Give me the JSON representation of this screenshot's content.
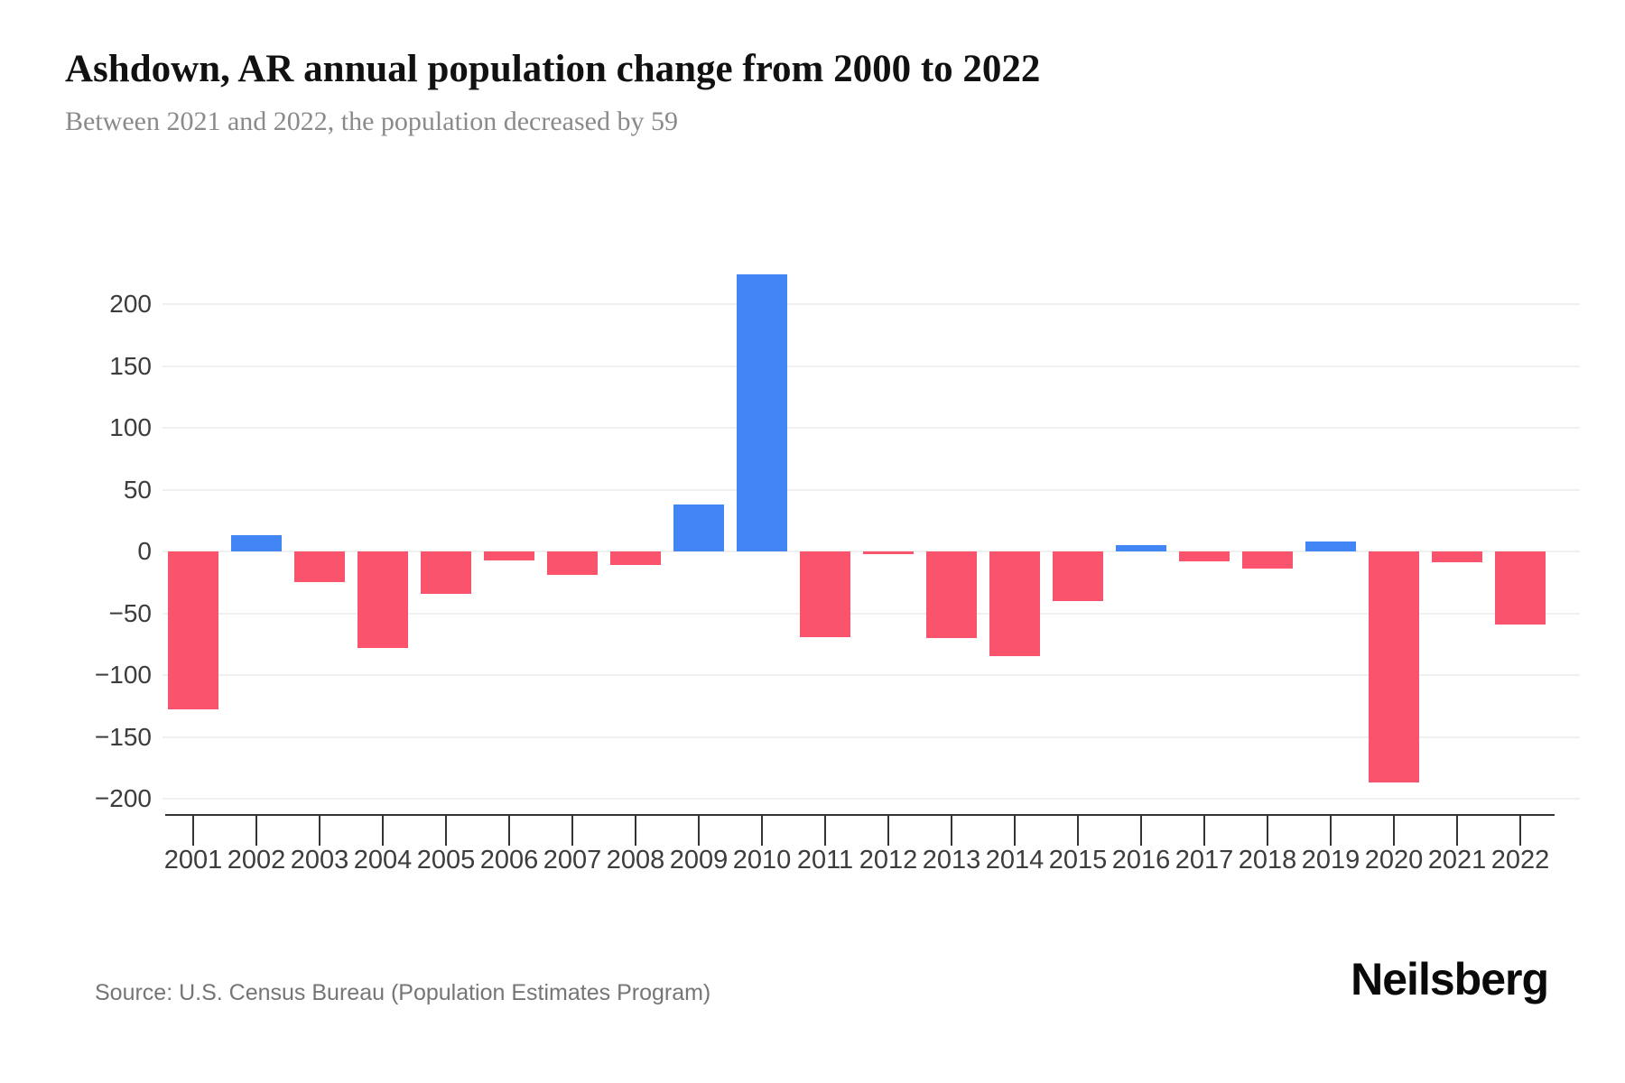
{
  "header": {
    "title": "Ashdown, AR annual population change from 2000 to 2022",
    "subtitle": "Between 2021 and 2022, the population decreased by 59"
  },
  "footer": {
    "source": "Source: U.S. Census Bureau (Population Estimates Program)",
    "logo": "Neilsberg"
  },
  "colors": {
    "positive_bar": "#4285F4",
    "negative_bar": "#F9536E",
    "gridline": "#F0F0F0",
    "axis_line": "#333333",
    "tick_label": "#3C3C3C",
    "subtitle": "#8A8A8A",
    "source": "#757575",
    "background": "#FFFFFF"
  },
  "chart_data": {
    "type": "bar",
    "title": "Ashdown, AR annual population change from 2000 to 2022",
    "subtitle": "Between 2021 and 2022, the population decreased by 59",
    "xlabel": "",
    "ylabel": "",
    "categories": [
      2001,
      2002,
      2003,
      2004,
      2005,
      2006,
      2007,
      2008,
      2009,
      2010,
      2011,
      2012,
      2013,
      2014,
      2015,
      2016,
      2017,
      2018,
      2019,
      2020,
      2021,
      2022
    ],
    "values": [
      -128,
      13,
      -25,
      -78,
      -34,
      -7,
      -19,
      -11,
      38,
      224,
      -69,
      -2,
      -70,
      -85,
      -40,
      5,
      -8,
      -14,
      8,
      -187,
      -9,
      -59
    ],
    "ylim": [
      -215,
      245
    ],
    "ytick_values": [
      200,
      150,
      100,
      50,
      0,
      -50,
      -100,
      -150,
      -200
    ],
    "ytick_labels": [
      "200",
      "150",
      "100",
      "50",
      "0",
      "−50",
      "−100",
      "−150",
      "−200"
    ],
    "grid": "horizontal",
    "legend": "none"
  }
}
